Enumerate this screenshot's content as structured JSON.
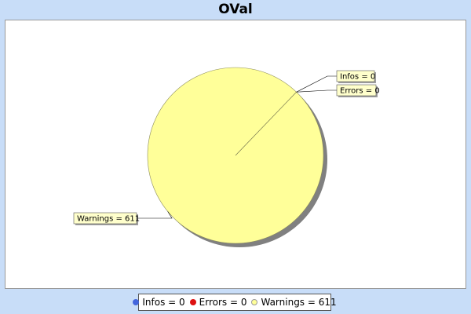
{
  "chart_data": {
    "type": "pie",
    "title": "OVal",
    "slices": [
      {
        "name": "Infos",
        "value": 0,
        "label": "Infos = 0",
        "color": "#4466dd"
      },
      {
        "name": "Errors",
        "value": 0,
        "label": "Errors = 0",
        "color": "#dd1111"
      },
      {
        "name": "Warnings",
        "value": 611,
        "label": "Warnings = 611",
        "color": "#ffff99"
      }
    ],
    "legend": {
      "position": "bottom",
      "items": [
        "Infos = 0",
        "Errors = 0",
        "Warnings = 611"
      ]
    },
    "colors": {
      "background": "#c8ddf8",
      "shadow": "#808080",
      "label_box": "#ffffcc"
    }
  }
}
